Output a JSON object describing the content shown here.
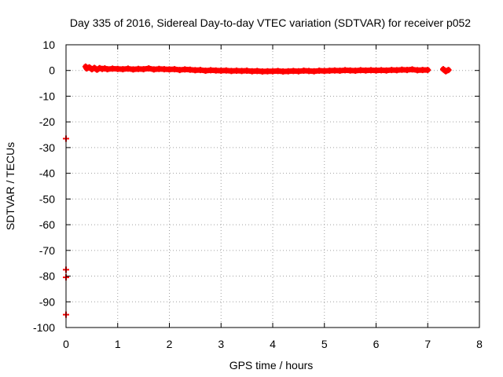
{
  "chart_data": {
    "type": "scatter",
    "title": "Day 335 of 2016, Sidereal Day-to-day VTEC variation (SDTVAR) for receiver p052",
    "xlabel": "GPS time / hours",
    "ylabel": "SDTVAR / TECUs",
    "xlim": [
      0,
      8
    ],
    "ylim": [
      -100,
      10
    ],
    "xticks": [
      "0",
      "1",
      "2",
      "3",
      "4",
      "5",
      "6",
      "7",
      "8"
    ],
    "yticks": [
      "10",
      "0",
      "-10",
      "-20",
      "-30",
      "-40",
      "-50",
      "-60",
      "-70",
      "-80",
      "-90",
      "-100"
    ],
    "grid": true,
    "marker": "plus",
    "series_color": "#ff0000",
    "series": [
      {
        "points": [
          [
            0.0,
            -26.5
          ],
          [
            0.0,
            -77.5
          ],
          [
            0.0,
            -80.5
          ],
          [
            0.0,
            -95.0
          ],
          [
            0.38,
            1.5
          ],
          [
            0.4,
            0.8
          ],
          [
            0.45,
            1.2
          ],
          [
            0.5,
            0.5
          ],
          [
            0.55,
            1.0
          ],
          [
            0.6,
            0.3
          ],
          [
            0.65,
            0.9
          ],
          [
            0.7,
            0.6
          ],
          [
            0.75,
            0.8
          ],
          [
            0.8,
            0.5
          ],
          [
            0.9,
            0.7
          ],
          [
            1.0,
            0.6
          ],
          [
            1.1,
            0.5
          ],
          [
            1.2,
            0.7
          ],
          [
            1.3,
            0.4
          ],
          [
            1.4,
            0.6
          ],
          [
            1.5,
            0.5
          ],
          [
            1.6,
            0.8
          ],
          [
            1.7,
            0.4
          ],
          [
            1.8,
            0.6
          ],
          [
            1.9,
            0.5
          ],
          [
            2.0,
            0.4
          ],
          [
            2.1,
            0.5
          ],
          [
            2.2,
            0.2
          ],
          [
            2.3,
            0.4
          ],
          [
            2.4,
            0.3
          ],
          [
            2.5,
            0.1
          ],
          [
            2.6,
            0.2
          ],
          [
            2.7,
            -0.1
          ],
          [
            2.8,
            0.1
          ],
          [
            2.9,
            0.0
          ],
          [
            3.0,
            -0.1
          ],
          [
            3.1,
            0.0
          ],
          [
            3.2,
            -0.2
          ],
          [
            3.3,
            -0.1
          ],
          [
            3.4,
            -0.2
          ],
          [
            3.5,
            -0.1
          ],
          [
            3.6,
            -0.3
          ],
          [
            3.7,
            -0.2
          ],
          [
            3.8,
            -0.4
          ],
          [
            3.9,
            -0.3
          ],
          [
            4.0,
            -0.3
          ],
          [
            4.1,
            -0.2
          ],
          [
            4.2,
            -0.4
          ],
          [
            4.3,
            -0.3
          ],
          [
            4.4,
            -0.2
          ],
          [
            4.5,
            -0.3
          ],
          [
            4.6,
            -0.1
          ],
          [
            4.7,
            -0.2
          ],
          [
            4.8,
            -0.3
          ],
          [
            4.9,
            -0.1
          ],
          [
            5.0,
            -0.2
          ],
          [
            5.1,
            -0.1
          ],
          [
            5.2,
            0.0
          ],
          [
            5.3,
            -0.1
          ],
          [
            5.4,
            0.1
          ],
          [
            5.5,
            0.0
          ],
          [
            5.6,
            -0.1
          ],
          [
            5.7,
            0.1
          ],
          [
            5.8,
            0.0
          ],
          [
            5.9,
            0.1
          ],
          [
            6.0,
            0.0
          ],
          [
            6.1,
            0.1
          ],
          [
            6.2,
            0.0
          ],
          [
            6.3,
            0.2
          ],
          [
            6.4,
            0.1
          ],
          [
            6.5,
            0.3
          ],
          [
            6.6,
            0.2
          ],
          [
            6.7,
            0.4
          ],
          [
            6.8,
            0.1
          ],
          [
            6.9,
            0.2
          ],
          [
            7.0,
            0.2
          ],
          [
            7.3,
            0.5
          ],
          [
            7.35,
            -0.3
          ],
          [
            7.4,
            0.2
          ]
        ]
      }
    ]
  }
}
